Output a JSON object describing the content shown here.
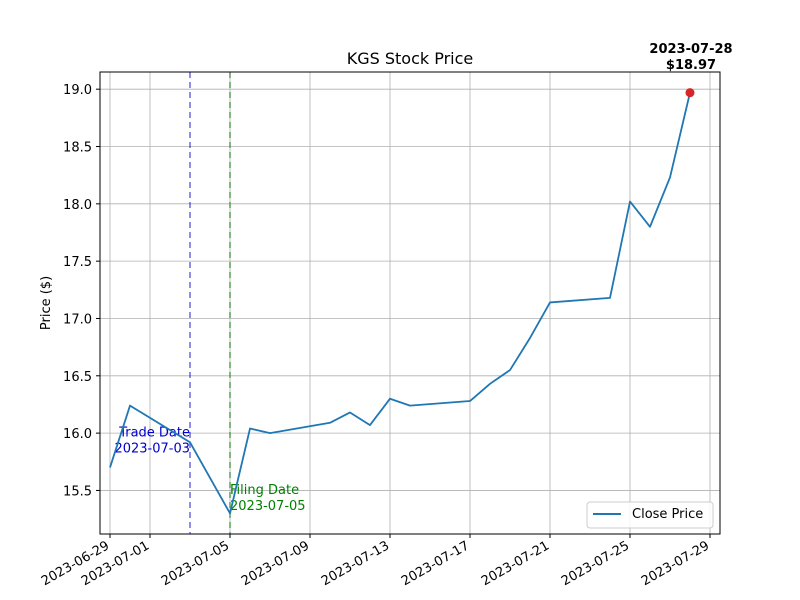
{
  "chart_data": {
    "type": "line",
    "title": "KGS Stock Price",
    "xlabel": "",
    "ylabel": "Price ($)",
    "xlim": [
      "2023-06-28T12:00",
      "2023-07-29T12:00"
    ],
    "ylim": [
      15.12,
      19.15
    ],
    "x_ticks": [
      "2023-06-29",
      "2023-07-01",
      "2023-07-05",
      "2023-07-09",
      "2023-07-13",
      "2023-07-17",
      "2023-07-21",
      "2023-07-25",
      "2023-07-29"
    ],
    "y_ticks": [
      15.5,
      16.0,
      16.5,
      17.0,
      17.5,
      18.0,
      18.5,
      19.0
    ],
    "y_tick_labels": [
      "15.5",
      "16.0",
      "16.5",
      "17.0",
      "17.5",
      "18.0",
      "18.5",
      "19.0"
    ],
    "grid": true,
    "legend_position": "lower-right",
    "series": [
      {
        "name": "Close Price",
        "color": "#1f77b4",
        "x": [
          "2023-06-29",
          "2023-06-30",
          "2023-07-03",
          "2023-07-05",
          "2023-07-06",
          "2023-07-07",
          "2023-07-10",
          "2023-07-11",
          "2023-07-12",
          "2023-07-13",
          "2023-07-14",
          "2023-07-17",
          "2023-07-18",
          "2023-07-19",
          "2023-07-20",
          "2023-07-21",
          "2023-07-24",
          "2023-07-25",
          "2023-07-26",
          "2023-07-27",
          "2023-07-28"
        ],
        "y": [
          15.7,
          16.24,
          15.92,
          15.3,
          16.04,
          16.0,
          16.09,
          16.18,
          16.07,
          16.3,
          16.24,
          16.28,
          16.43,
          16.55,
          16.83,
          17.14,
          17.18,
          18.02,
          17.8,
          18.23,
          18.97
        ]
      }
    ],
    "vlines": [
      {
        "x": "2023-07-03",
        "color": "#0000cc",
        "style": "dashed",
        "label_line1": "Trade Date",
        "label_line2": "2023-07-03",
        "label_y": 15.9
      },
      {
        "x": "2023-07-05",
        "color": "#008000",
        "style": "dashed",
        "label_line1": "Filing Date",
        "label_line2": "2023-07-05",
        "label_y": 15.4
      }
    ],
    "last_point": {
      "x": "2023-07-28",
      "y": 18.97,
      "color": "#d62728",
      "label_line1": "2023-07-28",
      "label_line2": "$18.97"
    }
  }
}
